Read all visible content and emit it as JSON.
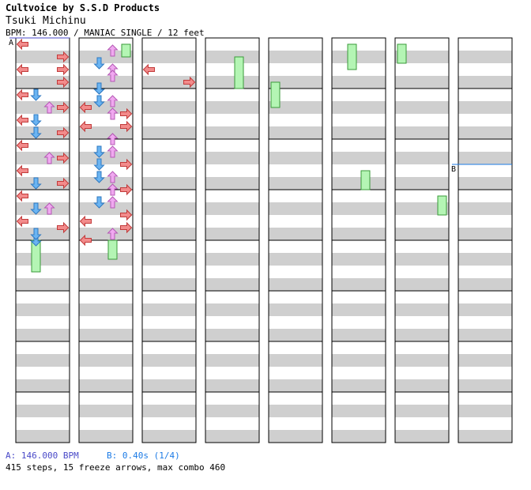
{
  "header": {
    "title": "Cultvoice by S.S.D Products",
    "artist": "Tsuki Michinu",
    "meta": "BPM: 146.000 / MANIAC SINGLE / 12 feet"
  },
  "markers": [
    {
      "label": "A",
      "column": 0,
      "beat": 0
    },
    {
      "label": "B",
      "column": 7,
      "beat": 10
    }
  ],
  "footer": {
    "bpm_label": "A: 146.000 BPM",
    "stop_label": "B: 0.40s (1/4)",
    "stats": "415 steps, 15 freeze arrows, max combo 460"
  },
  "colors": {
    "stripe": "#cfcfcf",
    "left": "#f28b8b",
    "down": "#6ab4f2",
    "up": "#f0a8f0",
    "right": "#f28b8b",
    "freeze": "#b4f5b4",
    "bpm_marker": "#4a4ac8",
    "stop_marker": "#1c7be6"
  },
  "chart_data": {
    "type": "step-chart",
    "columns": 8,
    "measures_per_column": 8,
    "lanes": [
      "left",
      "down",
      "up",
      "right"
    ],
    "total_steps": 415,
    "freeze_arrows": 15,
    "max_combo": 460,
    "steps": [
      [
        2,
        0,
        3
      ],
      [
        2,
        1,
        2
      ],
      [
        2,
        2,
        0
      ],
      [
        3,
        2,
        3
      ],
      [
        3.5,
        1,
        1
      ],
      [
        4,
        0,
        1
      ],
      [
        4.5,
        1,
        2
      ],
      [
        5,
        1,
        0
      ],
      [
        5,
        0,
        3
      ],
      [
        5.5,
        1,
        2
      ],
      [
        6,
        0,
        1
      ],
      [
        6.5,
        1,
        0
      ],
      [
        7,
        0,
        3
      ],
      [
        7.5,
        1,
        2
      ],
      [
        8,
        0,
        0
      ],
      [
        8.5,
        1,
        2
      ],
      [
        9,
        0,
        3
      ],
      [
        9.5,
        1,
        1
      ],
      [
        10,
        0,
        0
      ],
      [
        10.5,
        1,
        2
      ],
      [
        11,
        0,
        1
      ],
      [
        11.5,
        1,
        3
      ],
      [
        12,
        0,
        0
      ],
      [
        12.5,
        1,
        1
      ],
      [
        13,
        0,
        2
      ],
      [
        13.5,
        1,
        3
      ],
      [
        14,
        1,
        0
      ],
      [
        14.5,
        0,
        3
      ],
      [
        15,
        1,
        2
      ],
      [
        15.5,
        0,
        1
      ],
      [
        0,
        0,
        0
      ],
      [
        0.5,
        1,
        2
      ],
      [
        1,
        0,
        3
      ],
      [
        1.5,
        1,
        1
      ],
      [
        2,
        0,
        0
      ],
      [
        2.5,
        1,
        2
      ],
      [
        3,
        0,
        3
      ],
      [
        3.5,
        1,
        1
      ],
      [
        4,
        0,
        0
      ],
      [
        4.5,
        1,
        1
      ],
      [
        5,
        0,
        2
      ],
      [
        5.5,
        1,
        3
      ],
      [
        6,
        0,
        0
      ],
      [
        6.5,
        1,
        3
      ],
      [
        7,
        0,
        1
      ],
      [
        7.5,
        1,
        2
      ],
      [
        8,
        0,
        0
      ],
      [
        8.5,
        1,
        1
      ],
      [
        9,
        0,
        2
      ],
      [
        9.5,
        1,
        3
      ],
      [
        10,
        0,
        0
      ],
      [
        10.5,
        1,
        1
      ],
      [
        11,
        0,
        3
      ],
      [
        11.5,
        1,
        2
      ],
      [
        12,
        0,
        0
      ],
      [
        12.5,
        1,
        2
      ],
      [
        13,
        0,
        1
      ],
      [
        13.5,
        1,
        3
      ],
      [
        14,
        0,
        0
      ],
      [
        14.5,
        1,
        3
      ],
      [
        15,
        0,
        1
      ],
      [
        15.5,
        1,
        0
      ]
    ],
    "freezes": [
      [
        15.5,
        0,
        1,
        2.5
      ],
      [
        15.5,
        1,
        2,
        1.5
      ],
      [
        0,
        1,
        3,
        1
      ],
      [
        1,
        3,
        2,
        2.5
      ],
      [
        0,
        6,
        0,
        1.5
      ],
      [
        3,
        4,
        0,
        2
      ],
      [
        10,
        5,
        2,
        1.5
      ],
      [
        0,
        5,
        1,
        2
      ],
      [
        12,
        6,
        3,
        1.5
      ]
    ]
  }
}
